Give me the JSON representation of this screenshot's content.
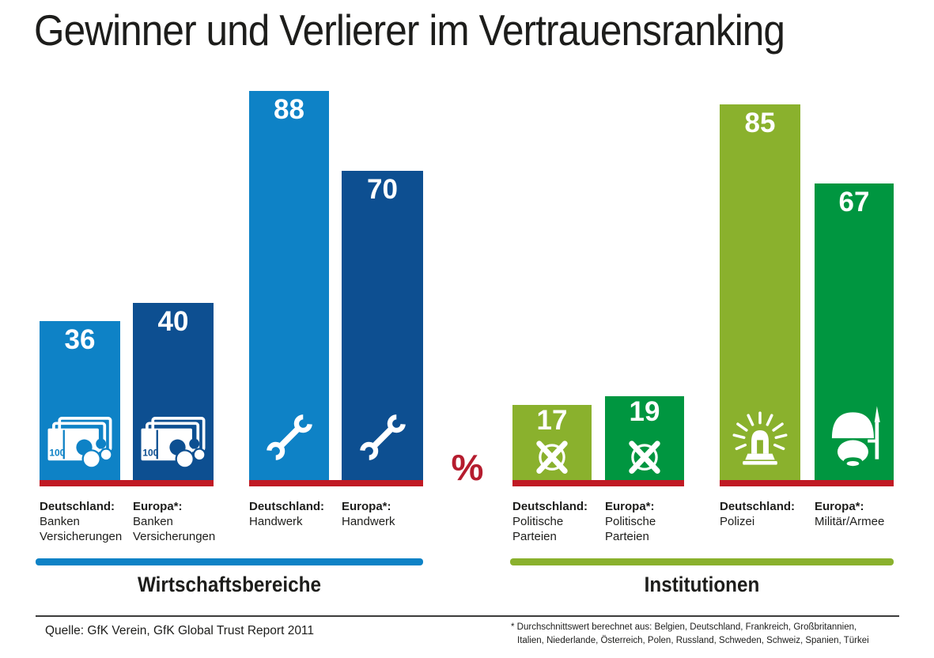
{
  "title": "Gewinner und Verlierer im Vertrauensranking",
  "percent_symbol": "%",
  "colors": {
    "light_blue": "#0e82c6",
    "dark_blue": "#0d4f91",
    "light_green": "#8ab12d",
    "dark_green": "#009640",
    "baseline_red": "#c01a24",
    "percent_red": "#b51c2e",
    "text": "#1d1d1b"
  },
  "chart_data": {
    "type": "bar",
    "unit": "%",
    "ylim": [
      0,
      100
    ],
    "grid": false,
    "legend": false,
    "groups": [
      {
        "label": "Wirtschaftsbereiche",
        "color_key": "light_blue"
      },
      {
        "label": "Institutionen",
        "color_key": "light_green"
      }
    ],
    "bars": [
      {
        "group": "Wirtschaftsbereiche",
        "region": "Deutschland:",
        "lines": [
          "Banken",
          "Versicherungen"
        ],
        "value": 36,
        "icon": "banknotes-icon",
        "color_key": "light_blue"
      },
      {
        "group": "Wirtschaftsbereiche",
        "region": "Europa*:",
        "lines": [
          "Banken",
          "Versicherungen"
        ],
        "value": 40,
        "icon": "banknotes-icon",
        "color_key": "dark_blue"
      },
      {
        "group": "Wirtschaftsbereiche",
        "region": "Deutschland:",
        "lines": [
          "Handwerk"
        ],
        "value": 88,
        "icon": "wrench-icon",
        "color_key": "light_blue"
      },
      {
        "group": "Wirtschaftsbereiche",
        "region": "Europa*:",
        "lines": [
          "Handwerk"
        ],
        "value": 70,
        "icon": "wrench-icon",
        "color_key": "dark_blue"
      },
      {
        "group": "Institutionen",
        "region": "Deutschland:",
        "lines": [
          "Politische",
          "Parteien"
        ],
        "value": 17,
        "icon": "ballot-cross-icon",
        "color_key": "light_green"
      },
      {
        "group": "Institutionen",
        "region": "Europa*:",
        "lines": [
          "Politische",
          "Parteien"
        ],
        "value": 19,
        "icon": "ballot-cross-icon",
        "color_key": "dark_green"
      },
      {
        "group": "Institutionen",
        "region": "Deutschland:",
        "lines": [
          "Polizei"
        ],
        "value": 85,
        "icon": "police-siren-icon",
        "color_key": "light_green"
      },
      {
        "group": "Institutionen",
        "region": "Europa*:",
        "lines": [
          "Militär/Armee"
        ],
        "value": 67,
        "icon": "soldier-helmet-icon",
        "color_key": "dark_green"
      }
    ]
  },
  "footer": {
    "source": "Quelle: GfK Verein, GfK Global Trust Report 2011",
    "footnote_line1": "* Durchschnittswert berechnet aus: Belgien, Deutschland, Frankreich, Großbritannien,",
    "footnote_line2": "Italien, Niederlande, Österreich, Polen, Russland, Schweden, Schweiz, Spanien, Türkei"
  }
}
